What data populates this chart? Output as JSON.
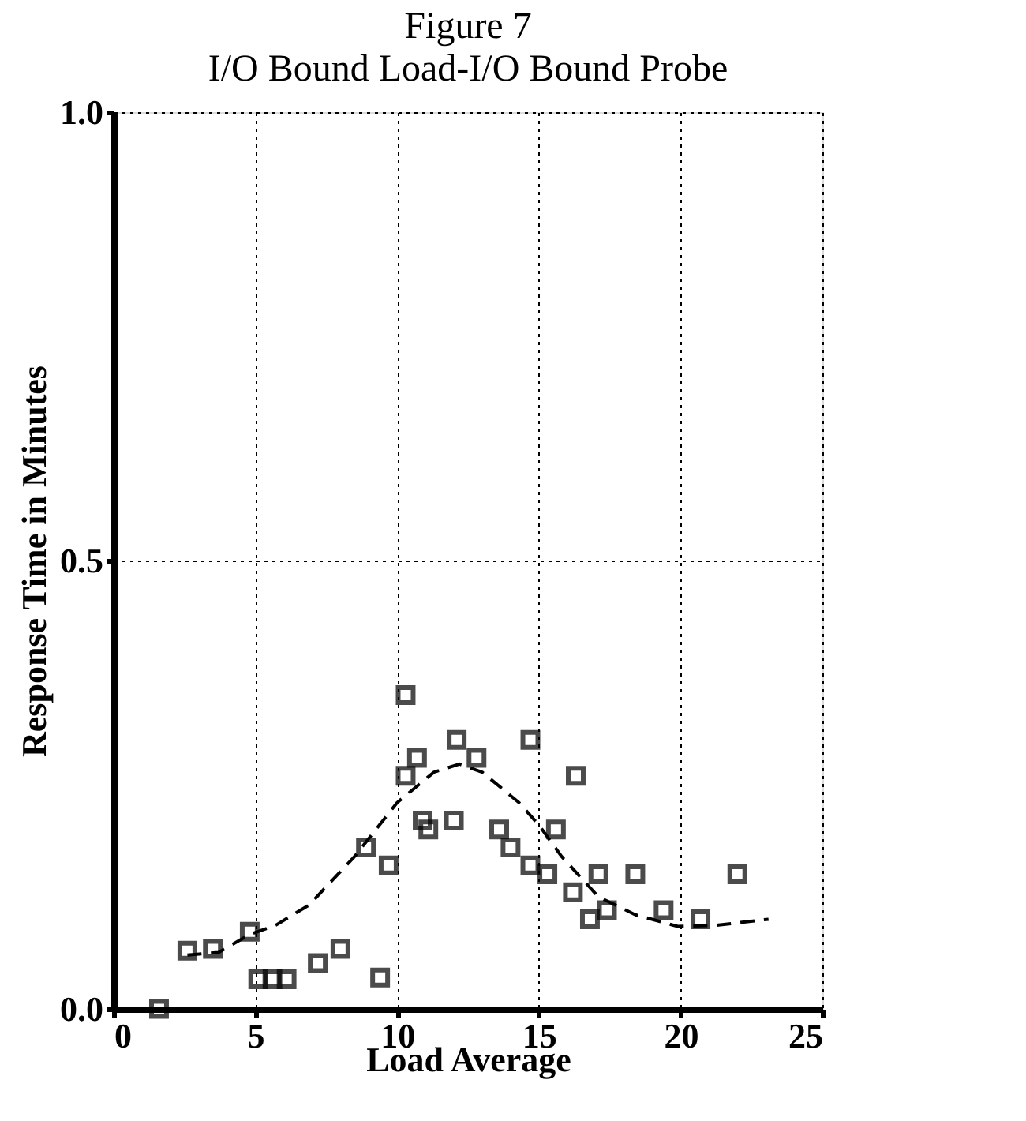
{
  "chart_data": {
    "type": "scatter",
    "title": "Figure 7",
    "subtitle": "I/O Bound Load-I/O Bound Probe",
    "xlabel": "Load Average",
    "ylabel": "Response Time in Minutes",
    "xlim": [
      0,
      25
    ],
    "xticks": [
      0,
      5,
      10,
      15,
      20,
      25
    ],
    "ylim": [
      0,
      1
    ],
    "yticks": [
      {
        "value": 0,
        "label": "0.0"
      },
      {
        "value": 0.5,
        "label": "0.5"
      },
      {
        "value": 1,
        "label": "1.0"
      }
    ],
    "grid": true,
    "series": [
      {
        "type": "scatter",
        "marker": "square",
        "color": "#000000",
        "x": [
          1.6,
          2.6,
          3.5,
          4.8,
          5.1,
          5.6,
          6.1,
          7.2,
          8.0,
          9.4,
          8.9,
          9.7,
          10.3,
          10.7,
          10.3,
          10.9,
          11.1,
          12.0,
          12.1,
          12.8,
          14.7,
          13.6,
          14.0,
          14.7,
          15.3,
          15.6,
          16.3,
          16.2,
          16.8,
          17.4,
          17.1,
          18.4,
          19.4,
          20.7,
          22.0
        ],
        "values": [
          0,
          0.065,
          0.067,
          0.086,
          0.033,
          0.033,
          0.033,
          0.051,
          0.067,
          0.035,
          0.18,
          0.16,
          0.35,
          0.28,
          0.26,
          0.21,
          0.2,
          0.21,
          0.3,
          0.28,
          0.3,
          0.2,
          0.18,
          0.16,
          0.15,
          0.2,
          0.26,
          0.13,
          0.1,
          0.11,
          0.15,
          0.15,
          0.11,
          0.1,
          0.15
        ]
      },
      {
        "type": "line",
        "line_style": "dashed",
        "marker": "none",
        "color": "#000000",
        "x": [
          2.6,
          3.7,
          4.8,
          5.7,
          6.9,
          8.5,
          10.0,
          11.3,
          12.2,
          13.0,
          14.3,
          15.0,
          15.8,
          17.1,
          18.4,
          19.9,
          21.2,
          23.1
        ],
        "values": [
          0.06,
          0.063,
          0.083,
          0.093,
          0.116,
          0.17,
          0.23,
          0.264,
          0.273,
          0.264,
          0.23,
          0.205,
          0.17,
          0.125,
          0.105,
          0.092,
          0.093,
          0.1
        ]
      }
    ]
  }
}
